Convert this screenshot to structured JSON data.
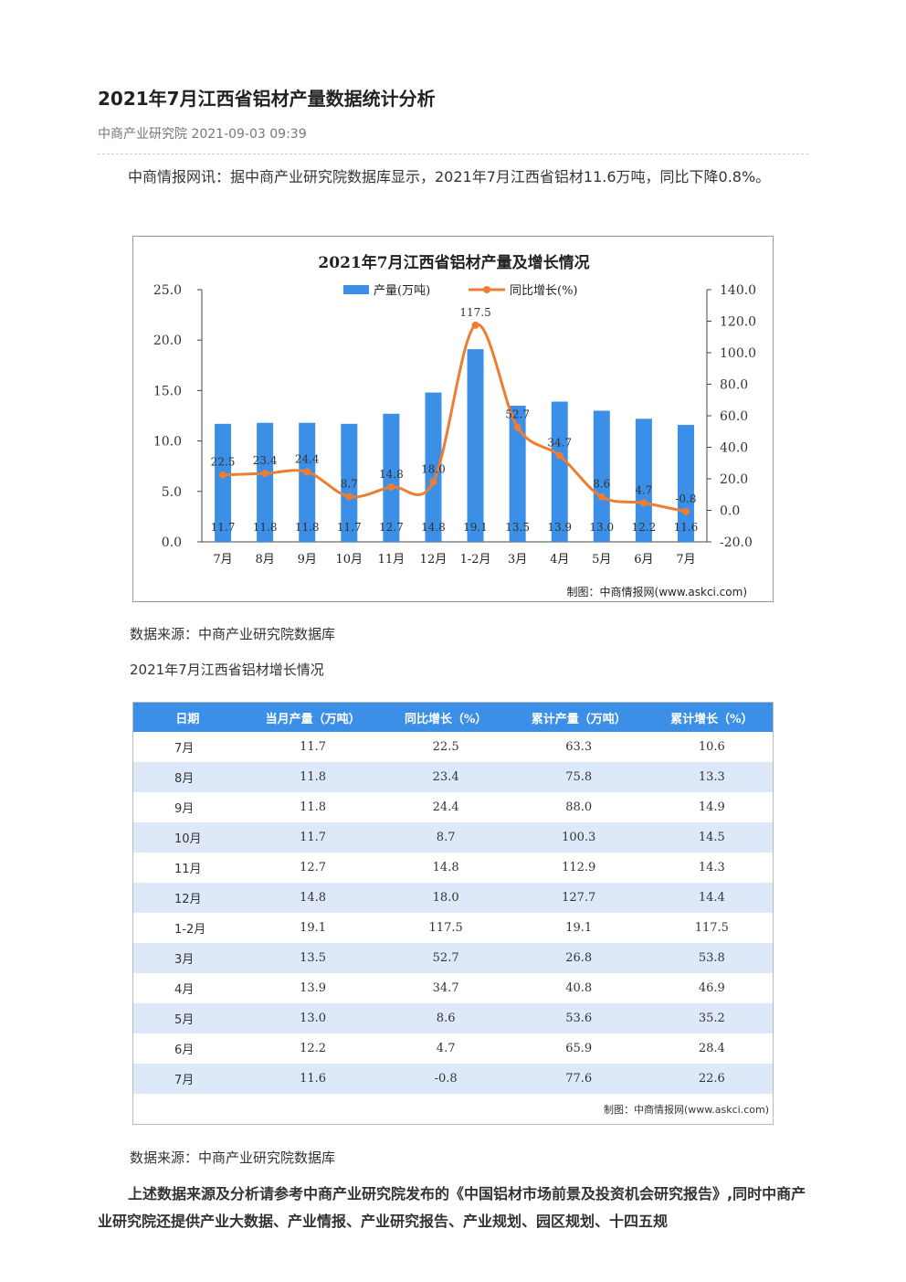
{
  "article": {
    "title": "2021年7月江西省铝材产量数据统计分析",
    "meta": "中商产业研究院 2021-09-03 09:39",
    "lead": "中商情报网讯：据中商产业研究院数据库显示，2021年7月江西省铝材11.6万吨，同比下降0.8%。",
    "source_caption_1": "数据来源：中商产业研究院数据库",
    "table_title": "2021年7月江西省铝材增长情况",
    "source_caption_2": "数据来源：中商产业研究院数据库",
    "conclusion": "上述数据来源及分析请参考中商产业研究院发布的《中国铝材市场前景及投资机会研究报告》,同时中商产业研究院还提供产业大数据、产业情报、产业研究报告、产业规划、园区规划、十四五规"
  },
  "colors": {
    "bar": "#3b8fe6",
    "line": "#ed7d31",
    "header": "#3b8fe6",
    "stripe": "#dde9f8"
  },
  "chart_data": {
    "type": "bar",
    "title": "2021年7月江西省铝材产量及增长情况",
    "categories": [
      "7月",
      "8月",
      "9月",
      "10月",
      "11月",
      "12月",
      "1-2月",
      "3月",
      "4月",
      "5月",
      "6月",
      "7月"
    ],
    "series": [
      {
        "name": "产量(万吨)",
        "type": "bar",
        "axis": "left",
        "values": [
          11.7,
          11.8,
          11.8,
          11.7,
          12.7,
          14.8,
          19.1,
          13.5,
          13.9,
          13.0,
          12.2,
          11.6
        ],
        "labels": [
          "11.7",
          "11.8",
          "11.8",
          "11.7",
          "12.7",
          "14.8",
          "19.1",
          "13.5",
          "13.9",
          "13.0",
          "12.2",
          "11.6"
        ]
      },
      {
        "name": "同比增长(%)",
        "type": "line",
        "axis": "right",
        "values": [
          22.5,
          23.4,
          24.4,
          8.7,
          14.8,
          18.0,
          117.5,
          52.7,
          34.7,
          8.6,
          4.7,
          -0.8
        ],
        "labels": [
          "22.5",
          "23.4",
          "24.4",
          "8.7",
          "14.8",
          "18.0",
          "117.5",
          "52.7",
          "34.7",
          "8.6",
          "4.7",
          "-0.8"
        ]
      }
    ],
    "y_left": {
      "range": [
        0,
        25
      ],
      "ticks": [
        "0.0",
        "5.0",
        "10.0",
        "15.0",
        "20.0",
        "25.0"
      ]
    },
    "y_right": {
      "range": [
        -20,
        140
      ],
      "ticks": [
        "-20.0",
        "0.0",
        "20.0",
        "40.0",
        "60.0",
        "80.0",
        "100.0",
        "120.0",
        "140.0"
      ]
    },
    "legend_position": "top",
    "grid": false,
    "source_note": "制图：中商情报网(www.askci.com)"
  },
  "table": {
    "headers": [
      "日期",
      "当月产量（万吨）",
      "同比增长（%）",
      "累计产量（万吨）",
      "累计增长（%）"
    ],
    "rows": [
      [
        "7月",
        "11.7",
        "22.5",
        "63.3",
        "10.6"
      ],
      [
        "8月",
        "11.8",
        "23.4",
        "75.8",
        "13.3"
      ],
      [
        "9月",
        "11.8",
        "24.4",
        "88.0",
        "14.9"
      ],
      [
        "10月",
        "11.7",
        "8.7",
        "100.3",
        "14.5"
      ],
      [
        "11月",
        "12.7",
        "14.8",
        "112.9",
        "14.3"
      ],
      [
        "12月",
        "14.8",
        "18.0",
        "127.7",
        "14.4"
      ],
      [
        "1-2月",
        "19.1",
        "117.5",
        "19.1",
        "117.5"
      ],
      [
        "3月",
        "13.5",
        "52.7",
        "26.8",
        "53.8"
      ],
      [
        "4月",
        "13.9",
        "34.7",
        "40.8",
        "46.9"
      ],
      [
        "5月",
        "13.0",
        "8.6",
        "53.6",
        "35.2"
      ],
      [
        "6月",
        "12.2",
        "4.7",
        "65.9",
        "28.4"
      ],
      [
        "7月",
        "11.6",
        "-0.8",
        "77.6",
        "22.6"
      ]
    ],
    "source_note": "制图：中商情报网(www.askci.com)"
  }
}
